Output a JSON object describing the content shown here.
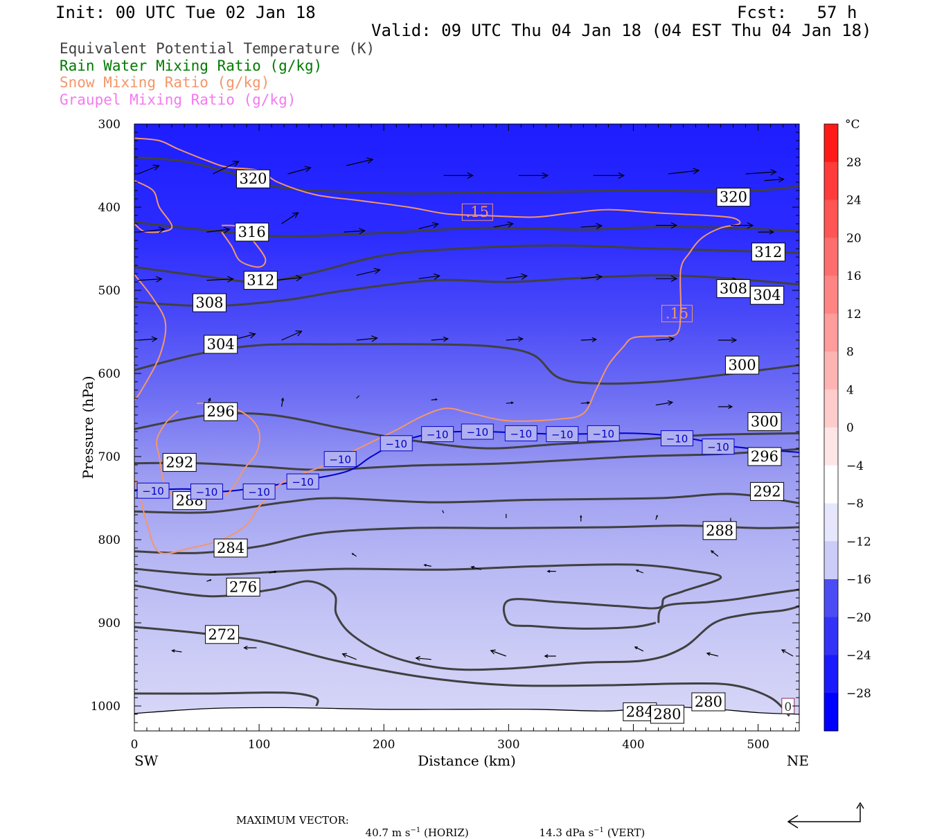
{
  "header": {
    "init": "Init: 00 UTC Tue 02 Jan 18",
    "fcst": "Fcst:   57 h",
    "valid": "Valid: 09 UTC Thu 04 Jan 18 (04 EST Thu 04 Jan 18)"
  },
  "fields": [
    {
      "label": "Equivalent Potential Temperature (K)",
      "color": "#404040"
    },
    {
      "label": "Rain Water Mixing Ratio (g/kg)",
      "color": "#007a00"
    },
    {
      "label": "Snow Mixing Ratio (g/kg)",
      "color": "#f4966a"
    },
    {
      "label": "Graupel Mixing Ratio (g/kg)",
      "color": "#f47af0"
    }
  ],
  "chart_data": {
    "type": "contour",
    "xlabel": "Distance (km)",
    "ylabel": "Pressure (hPa)",
    "x_ticks": [
      0,
      100,
      200,
      300,
      400,
      500
    ],
    "y_ticks": [
      300,
      400,
      500,
      600,
      700,
      800,
      900,
      1000
    ],
    "xlim": [
      0,
      533
    ],
    "ylim": [
      1030,
      300
    ],
    "x_end_labels": {
      "left": "SW",
      "right": "NE"
    },
    "colorbar": {
      "unit": "°C",
      "tick_labels": [
        "28",
        "24",
        "20",
        "16",
        "12",
        "8",
        "4",
        "0",
        "−4",
        "−8",
        "−12",
        "−16",
        "−20",
        "−24",
        "−28"
      ],
      "range": [
        -32,
        32
      ]
    },
    "theta_e_labels": [
      "320",
      "320",
      "316",
      "312",
      "312",
      "308",
      "308",
      "304",
      "304",
      "300",
      "300",
      "296",
      "296",
      "292",
      "292",
      "288",
      "288",
      "284",
      "284",
      "280",
      "280",
      "276",
      "272"
    ],
    "temperature_labels": [
      "−10",
      "−10",
      "−10",
      "−10",
      "−10",
      "−10",
      "−10",
      "−10",
      "−10",
      "−10",
      "−10",
      "−10",
      "−10"
    ],
    "snow_labels": [
      ".15",
      ".15"
    ],
    "graupel_labels": [
      "0"
    ],
    "theta_e_contours": [
      {
        "value": 272,
        "points": [
          [
            0,
            985
          ],
          [
            60,
            985
          ],
          [
            120,
            984
          ],
          [
            145,
            990
          ],
          [
            146,
            1000
          ]
        ]
      },
      {
        "value": 276,
        "points": [
          [
            0,
            905
          ],
          [
            50,
            912
          ],
          [
            100,
            922
          ],
          [
            160,
            945
          ],
          [
            230,
            965
          ],
          [
            300,
            975
          ],
          [
            380,
            975
          ],
          [
            440,
            973
          ],
          [
            480,
            975
          ],
          [
            510,
            990
          ],
          [
            525,
            1012
          ]
        ]
      },
      {
        "value": 280,
        "points": [
          [
            0,
            855
          ],
          [
            60,
            868
          ],
          [
            110,
            860
          ],
          [
            140,
            850
          ],
          [
            160,
            865
          ],
          [
            162,
            890
          ],
          [
            175,
            915
          ],
          [
            205,
            940
          ],
          [
            250,
            955
          ],
          [
            300,
            955
          ],
          [
            360,
            948
          ],
          [
            410,
            945
          ],
          [
            440,
            930
          ],
          [
            465,
            900
          ],
          [
            490,
            890
          ],
          [
            520,
            885
          ],
          [
            533,
            880
          ]
        ]
      },
      {
        "value": 280,
        "points": [
          [
            0,
            835
          ],
          [
            60,
            842
          ],
          [
            120,
            838
          ],
          [
            170,
            835
          ],
          [
            250,
            836
          ],
          [
            320,
            832
          ],
          [
            400,
            830
          ],
          [
            450,
            838
          ],
          [
            470,
            846
          ],
          [
            440,
            862
          ],
          [
            425,
            870
          ],
          [
            420,
            882
          ],
          [
            390,
            880
          ],
          [
            340,
            875
          ],
          [
            300,
            873
          ],
          [
            300,
            900
          ],
          [
            320,
            904
          ],
          [
            360,
            907
          ],
          [
            400,
            905
          ],
          [
            418,
            900
          ]
        ]
      },
      {
        "value": 284,
        "points": [
          [
            420,
            900
          ],
          [
            425,
            880
          ],
          [
            460,
            875
          ],
          [
            480,
            872
          ],
          [
            510,
            865
          ],
          [
            533,
            860
          ]
        ]
      },
      {
        "value": 288,
        "points": [
          [
            0,
            814
          ],
          [
            50,
            816
          ],
          [
            100,
            808
          ],
          [
            150,
            792
          ],
          [
            220,
            786
          ],
          [
            300,
            786
          ],
          [
            380,
            785
          ],
          [
            440,
            783
          ],
          [
            500,
            786
          ],
          [
            533,
            785
          ]
        ]
      },
      {
        "value": 292,
        "points": [
          [
            0,
            766
          ],
          [
            60,
            767
          ],
          [
            120,
            755
          ],
          [
            160,
            750
          ],
          [
            240,
            755
          ],
          [
            320,
            752
          ],
          [
            420,
            750
          ],
          [
            480,
            745
          ],
          [
            533,
            756
          ]
        ]
      },
      {
        "value": 296,
        "points": [
          [
            0,
            708
          ],
          [
            50,
            708
          ],
          [
            100,
            712
          ],
          [
            150,
            716
          ],
          [
            220,
            711
          ],
          [
            300,
            708
          ],
          [
            400,
            700
          ],
          [
            470,
            697
          ],
          [
            533,
            691
          ]
        ]
      },
      {
        "value": 300,
        "points": [
          [
            0,
            667
          ],
          [
            60,
            650
          ],
          [
            110,
            650
          ],
          [
            170,
            667
          ],
          [
            220,
            680
          ],
          [
            280,
            690
          ],
          [
            340,
            685
          ],
          [
            400,
            680
          ],
          [
            460,
            674
          ],
          [
            533,
            672
          ]
        ]
      },
      {
        "value": 304,
        "points": [
          [
            0,
            596
          ],
          [
            50,
            577
          ],
          [
            100,
            566
          ],
          [
            160,
            565
          ],
          [
            240,
            565
          ],
          [
            290,
            568
          ],
          [
            320,
            578
          ],
          [
            340,
            605
          ],
          [
            370,
            612
          ],
          [
            420,
            610
          ],
          [
            470,
            602
          ],
          [
            533,
            590
          ]
        ]
      },
      {
        "value": 308,
        "points": [
          [
            0,
            514
          ],
          [
            60,
            519
          ],
          [
            120,
            512
          ],
          [
            170,
            500
          ],
          [
            240,
            488
          ],
          [
            300,
            490
          ],
          [
            360,
            485
          ],
          [
            420,
            482
          ],
          [
            470,
            485
          ],
          [
            533,
            493
          ]
        ]
      },
      {
        "value": 312,
        "points": [
          [
            0,
            472
          ],
          [
            60,
            484
          ],
          [
            100,
            490
          ],
          [
            140,
            480
          ],
          [
            200,
            458
          ],
          [
            260,
            450
          ],
          [
            340,
            446
          ],
          [
            420,
            450
          ],
          [
            470,
            452
          ],
          [
            533,
            455
          ]
        ]
      },
      {
        "value": 316,
        "points": [
          [
            0,
            418
          ],
          [
            60,
            428
          ],
          [
            120,
            435
          ],
          [
            200,
            431
          ],
          [
            280,
            425
          ],
          [
            360,
            427
          ],
          [
            420,
            424
          ],
          [
            480,
            425
          ],
          [
            533,
            429
          ]
        ]
      },
      {
        "value": 320,
        "points": [
          [
            0,
            340
          ],
          [
            40,
            345
          ],
          [
            80,
            360
          ],
          [
            120,
            377
          ],
          [
            200,
            383
          ],
          [
            260,
            383
          ],
          [
            320,
            382
          ],
          [
            400,
            380
          ],
          [
            460,
            381
          ],
          [
            500,
            380
          ],
          [
            533,
            375
          ]
        ]
      }
    ],
    "temperature_minus10_contour": [
      [
        0,
        741
      ],
      [
        40,
        739
      ],
      [
        70,
        742
      ],
      [
        100,
        737
      ],
      [
        130,
        730
      ],
      [
        170,
        718
      ],
      [
        190,
        700
      ],
      [
        210,
        684
      ],
      [
        240,
        672
      ],
      [
        280,
        670
      ],
      [
        340,
        673
      ],
      [
        400,
        672
      ],
      [
        440,
        677
      ],
      [
        480,
        688
      ],
      [
        533,
        695
      ]
    ],
    "snow_015_contours": [
      [
        [
          0,
          317
        ],
        [
          20,
          320
        ],
        [
          35,
          330
        ],
        [
          60,
          345
        ],
        [
          75,
          352
        ],
        [
          100,
          356
        ],
        [
          115,
          370
        ],
        [
          145,
          385
        ],
        [
          180,
          392
        ],
        [
          220,
          400
        ],
        [
          250,
          408
        ],
        [
          280,
          410
        ],
        [
          320,
          412
        ],
        [
          350,
          407
        ],
        [
          380,
          403
        ],
        [
          420,
          407
        ],
        [
          460,
          410
        ],
        [
          480,
          413
        ],
        [
          485,
          420
        ],
        [
          470,
          425
        ],
        [
          455,
          437
        ],
        [
          445,
          455
        ],
        [
          438,
          475
        ],
        [
          438,
          525
        ],
        [
          435,
          552
        ],
        [
          420,
          555
        ],
        [
          400,
          557
        ],
        [
          392,
          568
        ],
        [
          380,
          590
        ],
        [
          370,
          620
        ],
        [
          360,
          648
        ],
        [
          340,
          655
        ],
        [
          300,
          657
        ],
        [
          270,
          648
        ],
        [
          250,
          642
        ],
        [
          230,
          652
        ],
        [
          210,
          668
        ],
        [
          180,
          690
        ],
        [
          150,
          712
        ],
        [
          120,
          730
        ],
        [
          100,
          760
        ],
        [
          90,
          782
        ],
        [
          70,
          800
        ],
        [
          45,
          810
        ],
        [
          20,
          815
        ],
        [
          10,
          780
        ],
        [
          5,
          750
        ],
        [
          0,
          725
        ]
      ],
      [
        [
          0,
          420
        ],
        [
          10,
          430
        ],
        [
          30,
          425
        ],
        [
          20,
          400
        ],
        [
          15,
          380
        ],
        [
          0,
          368
        ]
      ],
      [
        [
          70,
          422
        ],
        [
          85,
          424
        ],
        [
          95,
          440
        ],
        [
          105,
          462
        ],
        [
          100,
          472
        ],
        [
          85,
          465
        ],
        [
          78,
          447
        ],
        [
          70,
          430
        ]
      ],
      [
        [
          0,
          481
        ],
        [
          15,
          510
        ],
        [
          25,
          540
        ],
        [
          20,
          580
        ],
        [
          5,
          622
        ],
        [
          0,
          632
        ]
      ],
      [
        [
          50,
          636
        ],
        [
          70,
          637
        ],
        [
          90,
          650
        ],
        [
          100,
          670
        ],
        [
          98,
          695
        ],
        [
          88,
          715
        ],
        [
          80,
          735
        ],
        [
          70,
          748
        ],
        [
          40,
          754
        ],
        [
          25,
          735
        ],
        [
          20,
          700
        ],
        [
          18,
          680
        ],
        [
          25,
          660
        ],
        [
          35,
          645
        ]
      ]
    ],
    "wind_vectors": [
      {
        "x": 3,
        "p": 360,
        "u": 30,
        "w": -12
      },
      {
        "x": 63,
        "p": 360,
        "u": 37,
        "w": -18
      },
      {
        "x": 123,
        "p": 360,
        "u": 33,
        "w": -9
      },
      {
        "x": 3,
        "p": 430,
        "u": 38,
        "w": -4
      },
      {
        "x": 58,
        "p": 430,
        "u": 33,
        "w": -4
      },
      {
        "x": 118,
        "p": 420,
        "u": 24,
        "w": -16
      },
      {
        "x": 3,
        "p": 488,
        "u": 34,
        "w": -2
      },
      {
        "x": 58,
        "p": 488,
        "u": 38,
        "w": -2
      },
      {
        "x": 113,
        "p": 488,
        "u": 38,
        "w": -4
      },
      {
        "x": 3,
        "p": 560,
        "u": 27,
        "w": -2
      },
      {
        "x": 78,
        "p": 560,
        "u": 34,
        "w": -9
      },
      {
        "x": 118,
        "p": 560,
        "u": 29,
        "w": -13
      }
    ],
    "max_vector": {
      "horiz": "40.7",
      "vert": "14.3"
    }
  },
  "footer": {
    "label": "MAXIMUM VECTOR:",
    "horiz_unit_pre": "m s",
    "vert_unit_pre": "dPa s",
    "exponent": "−1",
    "horiz_tag": "(HORIZ)",
    "vert_tag": "(VERT)"
  }
}
